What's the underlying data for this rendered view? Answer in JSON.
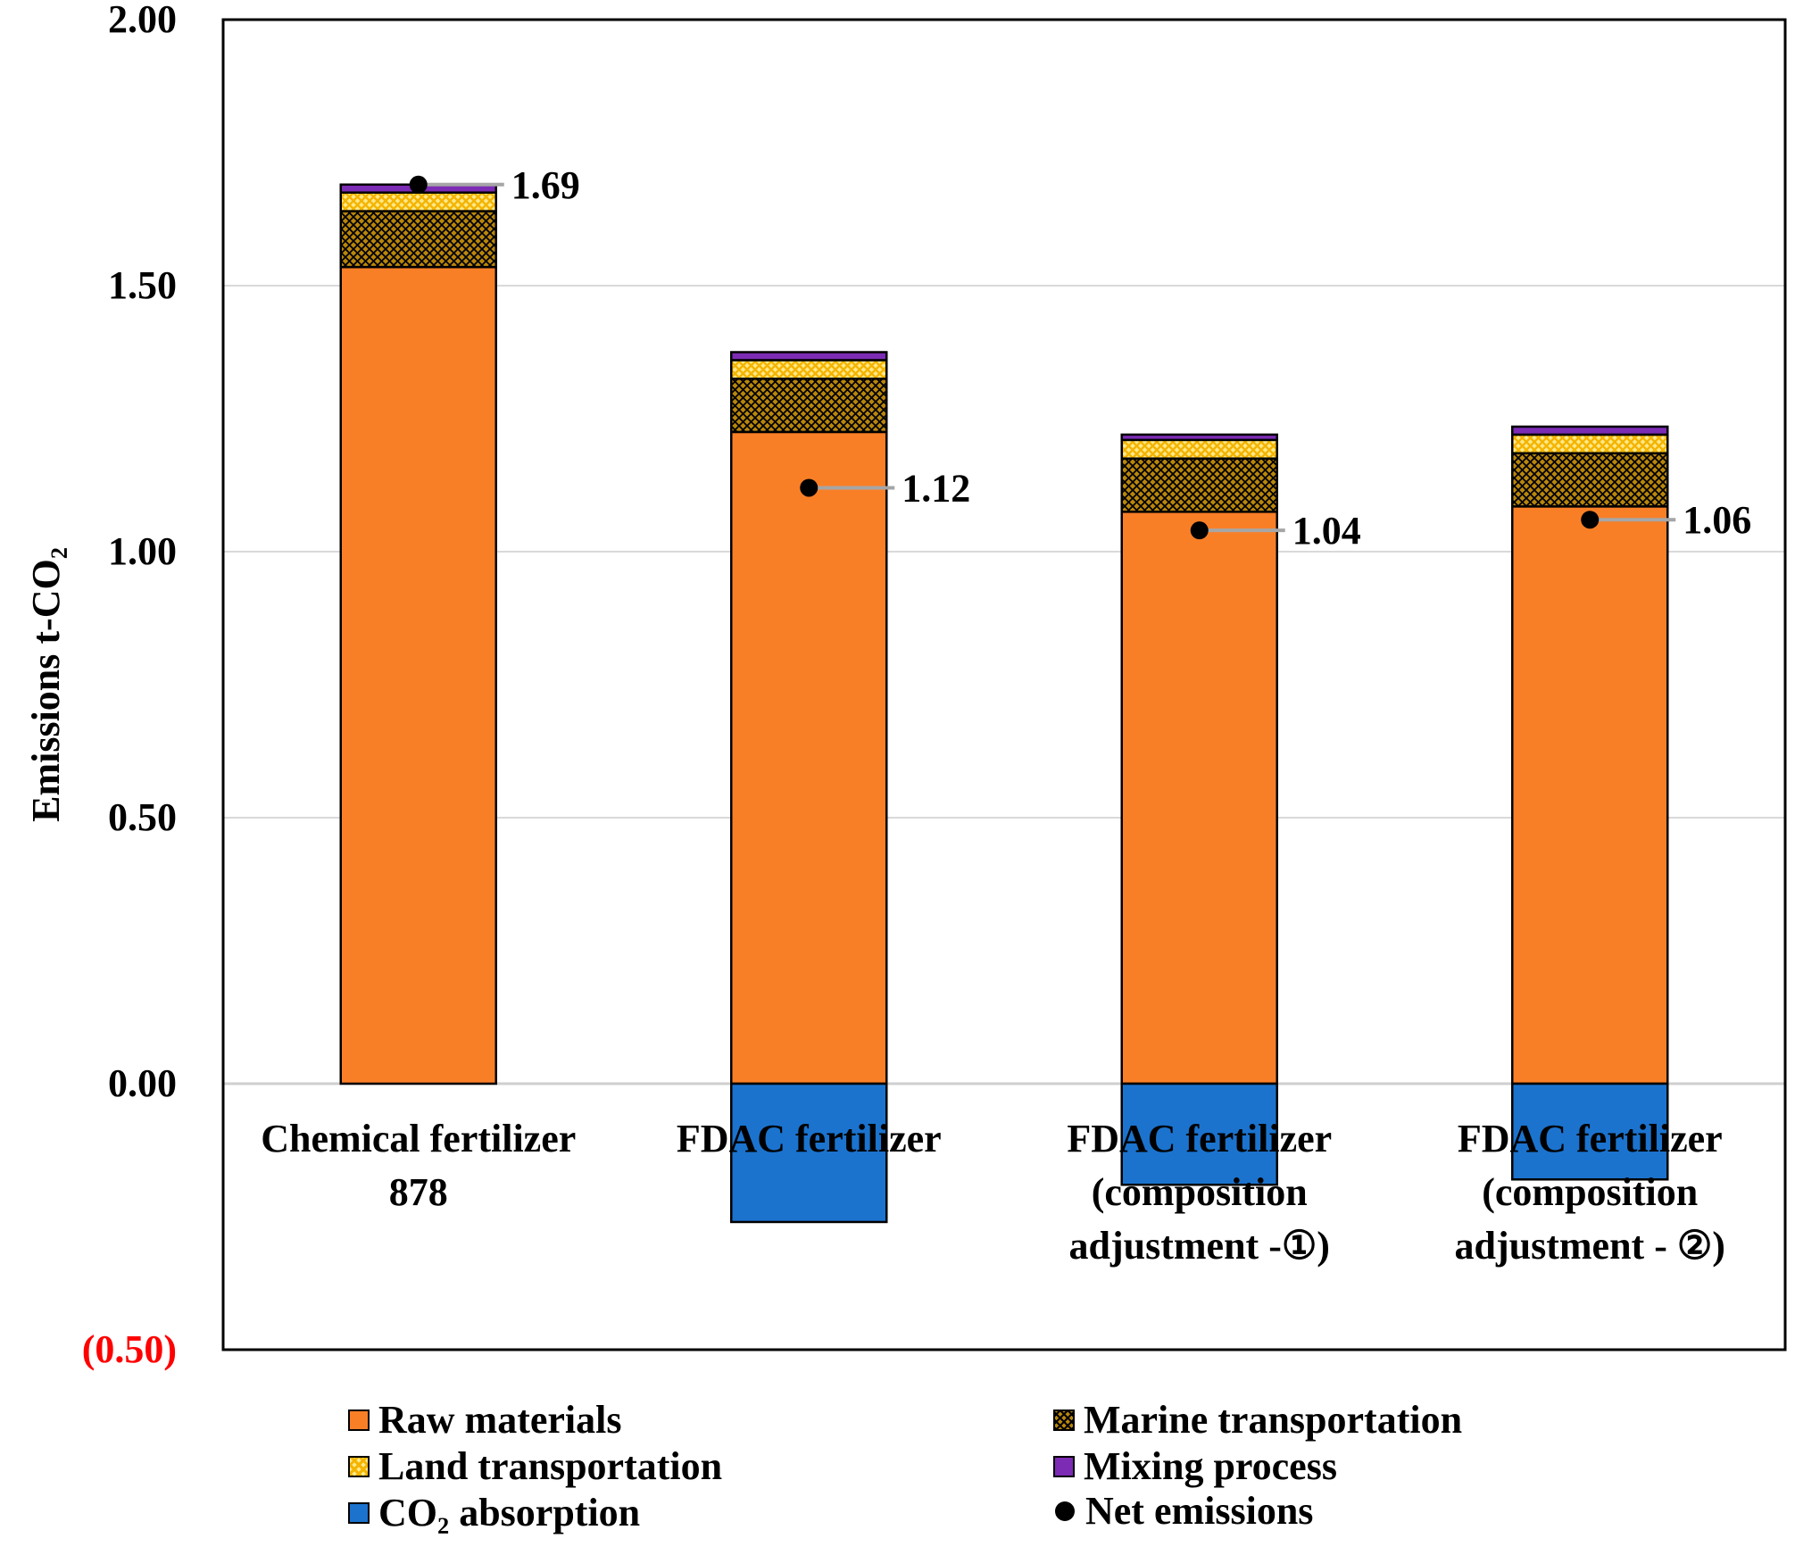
{
  "chart_data": {
    "type": "stacked-bar",
    "ylabel": "Emissions t-CO₂",
    "ylim": [
      -0.5,
      2.0
    ],
    "y_ticks": [
      {
        "value": 2.0,
        "label": "2.00",
        "color": "#000000"
      },
      {
        "value": 1.5,
        "label": "1.50",
        "color": "#000000"
      },
      {
        "value": 1.0,
        "label": "1.00",
        "color": "#000000"
      },
      {
        "value": 0.5,
        "label": "0.50",
        "color": "#000000"
      },
      {
        "value": 0.0,
        "label": "0.00",
        "color": "#000000"
      },
      {
        "value": -0.5,
        "label": "(0.50)",
        "color": "#FF0000"
      }
    ],
    "grid": true,
    "categories": [
      {
        "lines": [
          "Chemical fertilizer",
          "878"
        ]
      },
      {
        "lines": [
          "FDAC fertilizer"
        ]
      },
      {
        "lines": [
          "FDAC fertilizer",
          "(composition",
          "adjustment -①)"
        ]
      },
      {
        "lines": [
          "FDAC fertilizer",
          "(composition",
          "adjustment - ②)"
        ]
      }
    ],
    "series": [
      {
        "key": "raw",
        "name": "Raw materials",
        "color": "#F97F27",
        "values": [
          1.535,
          1.225,
          1.075,
          1.085
        ]
      },
      {
        "key": "marine",
        "name": "Marine transportation",
        "color": "#B8860B",
        "values": [
          0.105,
          0.1,
          0.1,
          0.1
        ]
      },
      {
        "key": "land",
        "name": "Land transportation",
        "color": "#FFE98A",
        "values": [
          0.035,
          0.035,
          0.035,
          0.035
        ]
      },
      {
        "key": "mix",
        "name": "Mixing process",
        "color": "#7C2BB4",
        "values": [
          0.015,
          0.015,
          0.01,
          0.015
        ]
      },
      {
        "key": "co2",
        "name": "CO₂ absorption",
        "color": "#1B73CE",
        "values": [
          0.0,
          -0.26,
          -0.19,
          -0.18
        ]
      }
    ],
    "net_emissions": {
      "name": "Net emissions",
      "values": [
        1.69,
        1.12,
        1.04,
        1.06
      ],
      "labels": [
        "1.69",
        "1.12",
        "1.04",
        "1.06"
      ]
    },
    "legend_position": "bottom"
  }
}
